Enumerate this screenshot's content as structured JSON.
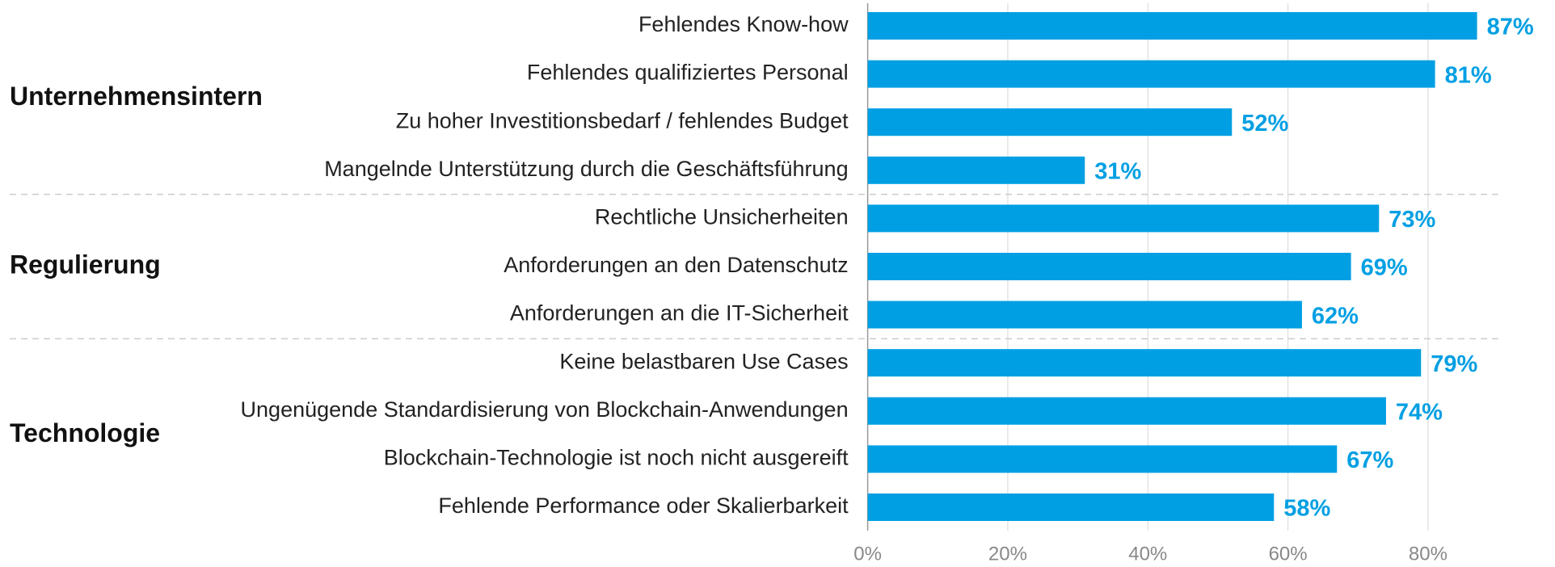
{
  "chart_data": {
    "type": "bar",
    "orientation": "horizontal",
    "color": "#009fe3",
    "grid": true,
    "xlim": [
      0,
      90
    ],
    "xticks": [
      {
        "value": 0,
        "label": "0%"
      },
      {
        "value": 20,
        "label": "20%"
      },
      {
        "value": 40,
        "label": "40%"
      },
      {
        "value": 60,
        "label": "60%"
      },
      {
        "value": 80,
        "label": "80%"
      }
    ],
    "groups": [
      {
        "name": "Unternehmensintern",
        "categories": [
          "Fehlendes Know-how",
          "Fehlendes qualifiziertes Personal",
          "Zu hoher Investitionsbedarf / fehlendes Budget",
          "Mangelnde Unterstützung durch die Geschäftsführung"
        ],
        "values": [
          87,
          81,
          52,
          31
        ],
        "value_labels": [
          "87%",
          "81%",
          "52%",
          "31%"
        ]
      },
      {
        "name": "Regulierung",
        "categories": [
          "Rechtliche Unsicherheiten",
          "Anforderungen an den Datenschutz",
          "Anforderungen an die IT-Sicherheit"
        ],
        "values": [
          73,
          69,
          62
        ],
        "value_labels": [
          "73%",
          "69%",
          "62%"
        ]
      },
      {
        "name": "Technologie",
        "categories": [
          "Keine belastbaren Use Cases",
          "Ungenügende Standardisierung von Blockchain-Anwendungen",
          "Blockchain-Technologie ist noch nicht ausgereift",
          "Fehlende Performance oder Skalierbarkeit"
        ],
        "values": [
          79,
          74,
          67,
          58
        ],
        "value_labels": [
          "79%",
          "74%",
          "67%",
          "58%"
        ]
      }
    ]
  }
}
